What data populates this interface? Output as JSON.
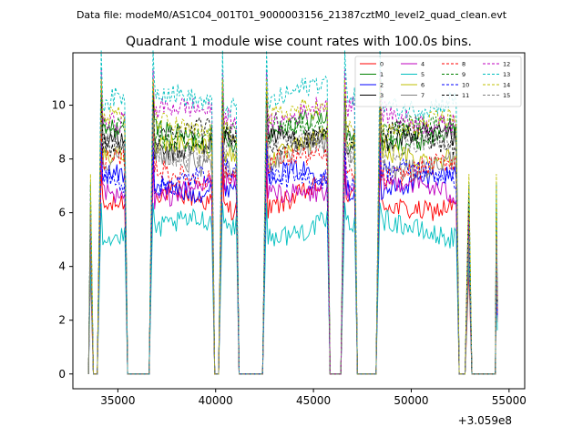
{
  "chart_data": {
    "type": "line",
    "suptitle": "Data file: modeM0/AS1C04_001T01_9000003156_21387cztM0_level2_quad_clean.evt",
    "title": "Quadrant 1 module wise count rates with 100.0s bins.",
    "xlabel": "",
    "ylabel": "",
    "x_offset_label": "+3.059e8",
    "xlim": [
      32700,
      55800
    ],
    "ylim": [
      -0.55,
      11.95
    ],
    "xticks": [
      35000,
      40000,
      45000,
      50000,
      55000
    ],
    "xtick_labels": [
      "35000",
      "40000",
      "45000",
      "50000",
      "55000"
    ],
    "yticks": [
      0,
      2,
      4,
      6,
      8,
      10
    ],
    "ytick_labels": [
      "0",
      "2",
      "4",
      "6",
      "8",
      "10"
    ],
    "segments": [
      {
        "start": 33600,
        "end": 33700,
        "levels": "spike"
      },
      {
        "start": 34150,
        "end": 35350,
        "levels": "plateau"
      },
      {
        "start": 36800,
        "end": 39800,
        "levels": "plateau"
      },
      {
        "start": 40350,
        "end": 41050,
        "levels": "plateau"
      },
      {
        "start": 42600,
        "end": 45700,
        "levels": "plateau"
      },
      {
        "start": 46600,
        "end": 47100,
        "levels": "plateau"
      },
      {
        "start": 48400,
        "end": 52300,
        "levels": "plateau"
      },
      {
        "start": 52950,
        "end": 52950,
        "levels": "spike"
      },
      {
        "start": 54350,
        "end": 54350,
        "levels": "spike"
      }
    ],
    "series": [
      {
        "name": "0",
        "color": "#ff0000",
        "dash": "solid",
        "level": 6.4
      },
      {
        "name": "1",
        "color": "#008000",
        "dash": "solid",
        "level": 8.9
      },
      {
        "name": "2",
        "color": "#0000ff",
        "dash": "solid",
        "level": 7.1
      },
      {
        "name": "3",
        "color": "#000000",
        "dash": "solid",
        "level": 8.6
      },
      {
        "name": "4",
        "color": "#bf00bf",
        "dash": "solid",
        "level": 6.8
      },
      {
        "name": "5",
        "color": "#00bfbf",
        "dash": "solid",
        "level": 5.4
      },
      {
        "name": "6",
        "color": "#bfbf00",
        "dash": "solid",
        "level": 8.3
      },
      {
        "name": "7",
        "color": "#808080",
        "dash": "solid",
        "level": 7.9
      },
      {
        "name": "8",
        "color": "#ff0000",
        "dash": "dashed",
        "level": 7.6
      },
      {
        "name": "9",
        "color": "#008000",
        "dash": "dashed",
        "level": 9.0
      },
      {
        "name": "10",
        "color": "#0000ff",
        "dash": "dashed",
        "level": 7.3
      },
      {
        "name": "11",
        "color": "#000000",
        "dash": "dashed",
        "level": 8.8
      },
      {
        "name": "12",
        "color": "#bf00bf",
        "dash": "dashed",
        "level": 9.6
      },
      {
        "name": "13",
        "color": "#00bfbf",
        "dash": "dashed",
        "level": 10.2
      },
      {
        "name": "14",
        "color": "#bfbf00",
        "dash": "dashed",
        "level": 9.3
      },
      {
        "name": "15",
        "color": "#808080",
        "dash": "dashed",
        "level": 8.4
      }
    ],
    "legend_position": "top-right"
  }
}
